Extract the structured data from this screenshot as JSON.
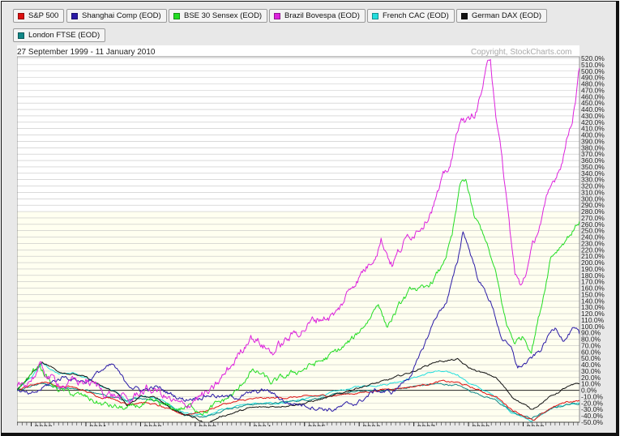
{
  "legend": [
    {
      "label": "S&P 500",
      "color": "#dd1111"
    },
    {
      "label": "Shanghai Comp (EOD)",
      "color": "#2a1aa6"
    },
    {
      "label": "BSE 30 Sensex (EOD)",
      "color": "#22dd22"
    },
    {
      "label": "Brazil Bovespa (EOD)",
      "color": "#dd22dd"
    },
    {
      "label": "French CAC (EOD)",
      "color": "#22dddd"
    },
    {
      "label": "German DAX (EOD)",
      "color": "#111111"
    },
    {
      "label": "London FTSE (EOD)",
      "color": "#118888"
    }
  ],
  "chart_data": {
    "type": "line",
    "date_range": "27 September 1999 - 11 January 2010",
    "copyright": "Copyright, StockCharts.com",
    "y_axis": {
      "min": -50,
      "max": 520,
      "step": 10,
      "unit": "%",
      "position": "right",
      "tick_labels": [
        "520.0%",
        "510.0%",
        "500.0%",
        "490.0%",
        "480.0%",
        "470.0%",
        "460.0%",
        "450.0%",
        "440.0%",
        "430.0%",
        "420.0%",
        "410.0%",
        "400.0%",
        "390.0%",
        "380.0%",
        "370.0%",
        "360.0%",
        "350.0%",
        "340.0%",
        "330.0%",
        "320.0%",
        "310.0%",
        "300.0%",
        "290.0%",
        "280.0%",
        "270.0%",
        "260.0%",
        "250.0%",
        "240.0%",
        "230.0%",
        "220.0%",
        "210.0%",
        "200.0%",
        "190.0%",
        "180.0%",
        "170.0%",
        "160.0%",
        "150.0%",
        "140.0%",
        "130.0%",
        "120.0%",
        "110.0%",
        "100.0%",
        "90.0%",
        "80.0%",
        "70.0%",
        "60.0%",
        "50.0%",
        "40.0%",
        "30.0%",
        "20.0%",
        "10.0%",
        "0.0%",
        "-10.0%",
        "-20.0%",
        "-30.0%",
        "-40.0%",
        "-50.0%"
      ]
    },
    "x_axis": {
      "start": 1999.74,
      "end": 2010.03,
      "tick_labels": [
        {
          "label": "2000",
          "x": 2000.0
        },
        {
          "label": "2001",
          "x": 2001.0
        },
        {
          "label": "2002",
          "x": 2002.0
        },
        {
          "label": "2003",
          "x": 2003.0
        },
        {
          "label": "2004",
          "x": 2004.0
        },
        {
          "label": "2005",
          "x": 2005.0
        },
        {
          "label": "2006",
          "x": 2006.0
        },
        {
          "label": "2007",
          "x": 2007.0
        },
        {
          "label": "2008",
          "x": 2008.0
        },
        {
          "label": "2009",
          "x": 2009.0
        }
      ]
    },
    "grid": true,
    "zero_line": true,
    "background": {
      "upper": "#ffffff",
      "lower": "#fffff0"
    },
    "series": [
      {
        "name": "S&P 500",
        "color": "#dd1111",
        "points": [
          [
            1999.74,
            0
          ],
          [
            2000.0,
            8
          ],
          [
            2000.25,
            14
          ],
          [
            2000.5,
            6
          ],
          [
            2000.75,
            5
          ],
          [
            2001.0,
            -2
          ],
          [
            2001.25,
            -10
          ],
          [
            2001.5,
            -12
          ],
          [
            2001.75,
            -22
          ],
          [
            2002.0,
            -18
          ],
          [
            2002.25,
            -22
          ],
          [
            2002.5,
            -30
          ],
          [
            2002.8,
            -38
          ],
          [
            2003.2,
            -32
          ],
          [
            2003.5,
            -22
          ],
          [
            2004.0,
            -14
          ],
          [
            2004.5,
            -12
          ],
          [
            2005.0,
            -10
          ],
          [
            2005.5,
            -8
          ],
          [
            2006.0,
            -4
          ],
          [
            2006.5,
            2
          ],
          [
            2007.0,
            6
          ],
          [
            2007.5,
            14
          ],
          [
            2007.8,
            12
          ],
          [
            2008.0,
            6
          ],
          [
            2008.5,
            -10
          ],
          [
            2008.8,
            -30
          ],
          [
            2009.2,
            -48
          ],
          [
            2009.5,
            -28
          ],
          [
            2009.8,
            -18
          ],
          [
            2010.03,
            -16
          ]
        ]
      },
      {
        "name": "Shanghai Comp (EOD)",
        "color": "#2a1aa6",
        "points": [
          [
            1999.74,
            0
          ],
          [
            2000.0,
            -10
          ],
          [
            2000.3,
            8
          ],
          [
            2000.6,
            22
          ],
          [
            2001.0,
            14
          ],
          [
            2001.3,
            32
          ],
          [
            2001.5,
            38
          ],
          [
            2001.7,
            14
          ],
          [
            2002.0,
            0
          ],
          [
            2002.3,
            4
          ],
          [
            2002.5,
            -4
          ],
          [
            2002.8,
            -14
          ],
          [
            2003.0,
            -10
          ],
          [
            2003.3,
            -6
          ],
          [
            2003.6,
            -12
          ],
          [
            2004.0,
            -6
          ],
          [
            2004.3,
            0
          ],
          [
            2004.7,
            -20
          ],
          [
            2005.0,
            -22
          ],
          [
            2005.5,
            -30
          ],
          [
            2005.8,
            -24
          ],
          [
            2006.0,
            -18
          ],
          [
            2006.3,
            0
          ],
          [
            2006.6,
            -4
          ],
          [
            2006.9,
            20
          ],
          [
            2007.1,
            50
          ],
          [
            2007.4,
            115
          ],
          [
            2007.6,
            140
          ],
          [
            2007.8,
            200
          ],
          [
            2007.9,
            250
          ],
          [
            2008.0,
            225
          ],
          [
            2008.2,
            170
          ],
          [
            2008.4,
            140
          ],
          [
            2008.6,
            85
          ],
          [
            2008.8,
            60
          ],
          [
            2008.9,
            35
          ],
          [
            2009.1,
            45
          ],
          [
            2009.3,
            60
          ],
          [
            2009.5,
            90
          ],
          [
            2009.6,
            100
          ],
          [
            2009.75,
            80
          ],
          [
            2009.9,
            95
          ],
          [
            2010.03,
            88
          ]
        ]
      },
      {
        "name": "BSE 30 Sensex (EOD)",
        "color": "#22dd22",
        "points": [
          [
            1999.74,
            0
          ],
          [
            2000.0,
            25
          ],
          [
            2000.15,
            40
          ],
          [
            2000.4,
            5
          ],
          [
            2000.7,
            -5
          ],
          [
            2001.0,
            -12
          ],
          [
            2001.3,
            -22
          ],
          [
            2001.6,
            -28
          ],
          [
            2001.8,
            -30
          ],
          [
            2002.0,
            -24
          ],
          [
            2002.3,
            -22
          ],
          [
            2002.6,
            -30
          ],
          [
            2002.9,
            -26
          ],
          [
            2003.2,
            -32
          ],
          [
            2003.5,
            -18
          ],
          [
            2003.8,
            0
          ],
          [
            2004.0,
            30
          ],
          [
            2004.2,
            25
          ],
          [
            2004.4,
            10
          ],
          [
            2004.7,
            22
          ],
          [
            2005.0,
            35
          ],
          [
            2005.3,
            45
          ],
          [
            2005.6,
            60
          ],
          [
            2005.9,
            80
          ],
          [
            2006.2,
            115
          ],
          [
            2006.35,
            140
          ],
          [
            2006.5,
            100
          ],
          [
            2006.8,
            140
          ],
          [
            2007.0,
            160
          ],
          [
            2007.2,
            155
          ],
          [
            2007.5,
            190
          ],
          [
            2007.7,
            240
          ],
          [
            2007.85,
            320
          ],
          [
            2007.95,
            330
          ],
          [
            2008.1,
            270
          ],
          [
            2008.3,
            240
          ],
          [
            2008.5,
            180
          ],
          [
            2008.7,
            100
          ],
          [
            2008.85,
            75
          ],
          [
            2009.0,
            85
          ],
          [
            2009.15,
            65
          ],
          [
            2009.35,
            140
          ],
          [
            2009.5,
            210
          ],
          [
            2009.7,
            230
          ],
          [
            2009.9,
            250
          ],
          [
            2010.03,
            265
          ]
        ]
      },
      {
        "name": "Brazil Bovespa (EOD)",
        "color": "#dd22dd",
        "points": [
          [
            1999.74,
            0
          ],
          [
            2000.0,
            20
          ],
          [
            2000.15,
            35
          ],
          [
            2000.4,
            15
          ],
          [
            2000.7,
            10
          ],
          [
            2001.0,
            15
          ],
          [
            2001.3,
            0
          ],
          [
            2001.6,
            -10
          ],
          [
            2001.8,
            -20
          ],
          [
            2002.0,
            0
          ],
          [
            2002.3,
            0
          ],
          [
            2002.6,
            -20
          ],
          [
            2002.8,
            -30
          ],
          [
            2003.0,
            -10
          ],
          [
            2003.3,
            -5
          ],
          [
            2003.6,
            30
          ],
          [
            2003.9,
            70
          ],
          [
            2004.0,
            90
          ],
          [
            2004.2,
            75
          ],
          [
            2004.4,
            60
          ],
          [
            2004.7,
            80
          ],
          [
            2005.0,
            100
          ],
          [
            2005.3,
            115
          ],
          [
            2005.6,
            120
          ],
          [
            2005.9,
            170
          ],
          [
            2006.2,
            200
          ],
          [
            2006.4,
            240
          ],
          [
            2006.6,
            200
          ],
          [
            2006.9,
            240
          ],
          [
            2007.2,
            270
          ],
          [
            2007.5,
            320
          ],
          [
            2007.7,
            360
          ],
          [
            2007.85,
            430
          ],
          [
            2008.0,
            420
          ],
          [
            2008.15,
            440
          ],
          [
            2008.3,
            490
          ],
          [
            2008.4,
            520
          ],
          [
            2008.5,
            440
          ],
          [
            2008.65,
            330
          ],
          [
            2008.85,
            180
          ],
          [
            2008.95,
            160
          ],
          [
            2009.1,
            200
          ],
          [
            2009.3,
            260
          ],
          [
            2009.5,
            310
          ],
          [
            2009.7,
            360
          ],
          [
            2009.9,
            430
          ],
          [
            2010.03,
            505
          ]
        ]
      },
      {
        "name": "French CAC (EOD)",
        "color": "#22dddd",
        "points": [
          [
            1999.74,
            0
          ],
          [
            2000.0,
            20
          ],
          [
            2000.2,
            42
          ],
          [
            2000.5,
            25
          ],
          [
            2000.8,
            28
          ],
          [
            2001.0,
            20
          ],
          [
            2001.3,
            5
          ],
          [
            2001.6,
            -5
          ],
          [
            2001.75,
            -18
          ],
          [
            2002.0,
            -10
          ],
          [
            2002.3,
            -12
          ],
          [
            2002.6,
            -25
          ],
          [
            2002.8,
            -35
          ],
          [
            2003.2,
            -40
          ],
          [
            2003.5,
            -30
          ],
          [
            2004.0,
            -22
          ],
          [
            2004.5,
            -20
          ],
          [
            2005.0,
            -14
          ],
          [
            2005.5,
            -4
          ],
          [
            2006.0,
            6
          ],
          [
            2006.5,
            10
          ],
          [
            2007.0,
            20
          ],
          [
            2007.4,
            30
          ],
          [
            2007.8,
            25
          ],
          [
            2008.0,
            12
          ],
          [
            2008.5,
            -10
          ],
          [
            2008.8,
            -35
          ],
          [
            2009.15,
            -48
          ],
          [
            2009.5,
            -30
          ],
          [
            2009.8,
            -22
          ],
          [
            2010.03,
            -20
          ]
        ]
      },
      {
        "name": "German DAX (EOD)",
        "color": "#111111",
        "points": [
          [
            1999.74,
            0
          ],
          [
            2000.0,
            25
          ],
          [
            2000.2,
            45
          ],
          [
            2000.5,
            30
          ],
          [
            2000.8,
            25
          ],
          [
            2001.0,
            20
          ],
          [
            2001.3,
            5
          ],
          [
            2001.6,
            -5
          ],
          [
            2001.75,
            -25
          ],
          [
            2002.0,
            -10
          ],
          [
            2002.3,
            -12
          ],
          [
            2002.6,
            -30
          ],
          [
            2002.9,
            -40
          ],
          [
            2003.2,
            -52
          ],
          [
            2003.5,
            -40
          ],
          [
            2004.0,
            -28
          ],
          [
            2004.5,
            -25
          ],
          [
            2005.0,
            -20
          ],
          [
            2005.5,
            -10
          ],
          [
            2006.0,
            5
          ],
          [
            2006.5,
            15
          ],
          [
            2007.0,
            30
          ],
          [
            2007.4,
            45
          ],
          [
            2007.8,
            48
          ],
          [
            2008.0,
            35
          ],
          [
            2008.5,
            20
          ],
          [
            2008.8,
            -10
          ],
          [
            2009.15,
            -30
          ],
          [
            2009.5,
            -10
          ],
          [
            2009.8,
            5
          ],
          [
            2010.03,
            10
          ]
        ]
      },
      {
        "name": "London FTSE (EOD)",
        "color": "#118888",
        "points": [
          [
            1999.74,
            0
          ],
          [
            2000.0,
            5
          ],
          [
            2000.2,
            10
          ],
          [
            2000.5,
            2
          ],
          [
            2000.8,
            3
          ],
          [
            2001.0,
            0
          ],
          [
            2001.3,
            -8
          ],
          [
            2001.6,
            -12
          ],
          [
            2001.75,
            -18
          ],
          [
            2002.0,
            -12
          ],
          [
            2002.3,
            -15
          ],
          [
            2002.6,
            -28
          ],
          [
            2002.8,
            -38
          ],
          [
            2003.2,
            -42
          ],
          [
            2003.5,
            -30
          ],
          [
            2004.0,
            -22
          ],
          [
            2004.5,
            -20
          ],
          [
            2005.0,
            -15
          ],
          [
            2005.5,
            -8
          ],
          [
            2006.0,
            -2
          ],
          [
            2006.5,
            0
          ],
          [
            2007.0,
            6
          ],
          [
            2007.4,
            10
          ],
          [
            2007.8,
            8
          ],
          [
            2008.0,
            0
          ],
          [
            2008.5,
            -15
          ],
          [
            2008.8,
            -35
          ],
          [
            2009.15,
            -44
          ],
          [
            2009.5,
            -30
          ],
          [
            2009.8,
            -22
          ],
          [
            2010.03,
            -20
          ]
        ]
      }
    ]
  }
}
